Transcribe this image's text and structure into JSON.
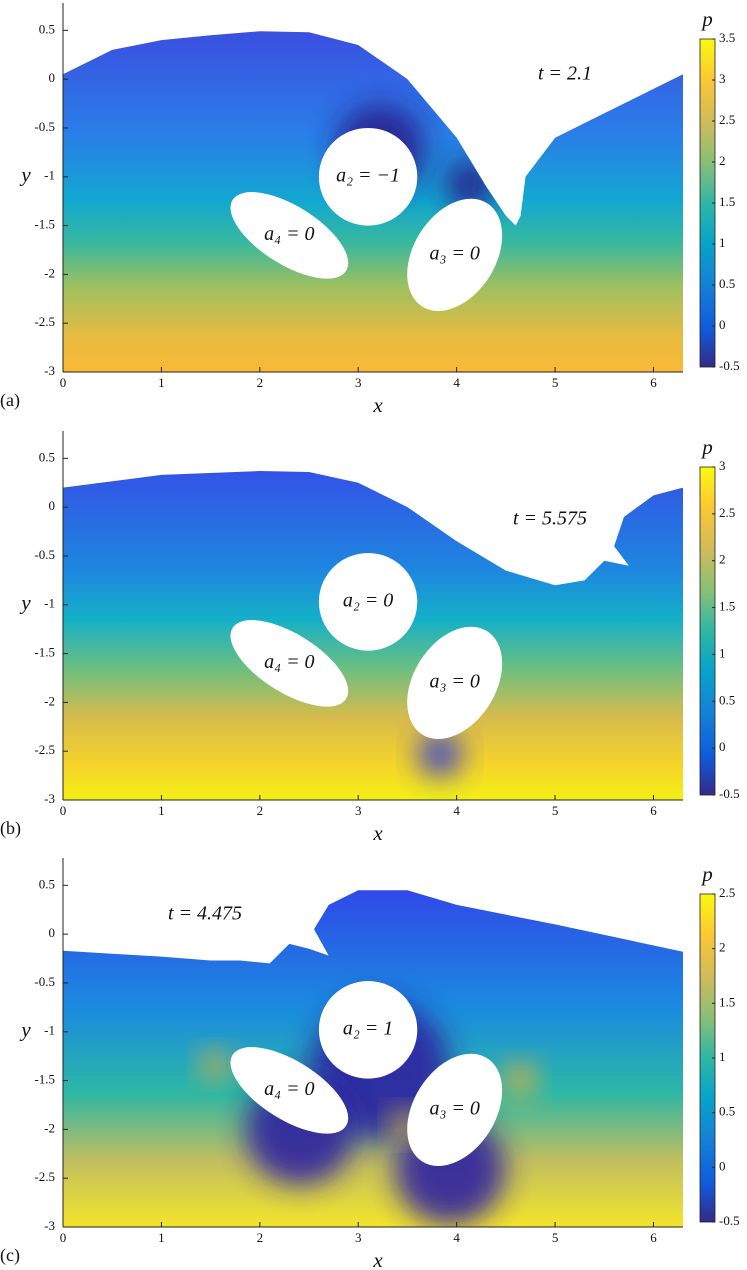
{
  "chart_data": [
    {
      "type": "field",
      "label": "(a)",
      "annotation": "t = 2.1",
      "xlabel": "x",
      "ylabel": "y",
      "colorbar_label": "p",
      "xlim": [
        0,
        6.3
      ],
      "ylim": [
        -3,
        0.78
      ],
      "xticks": [
        0,
        1,
        2,
        3,
        4,
        5,
        6
      ],
      "yticks": [
        -3,
        -2.5,
        -2,
        -1.5,
        -1,
        -0.5,
        0,
        0.5
      ],
      "clim": [
        -0.5,
        3.5
      ],
      "cticks": [
        -0.5,
        0,
        0.5,
        1,
        1.5,
        2,
        2.5,
        3,
        3.5
      ],
      "surface": {
        "x": [
          0,
          0.5,
          1,
          1.5,
          2,
          2.5,
          3,
          3.5,
          4,
          4.3,
          4.5,
          4.6,
          4.65,
          4.7,
          5,
          5.5,
          6,
          6.3
        ],
        "y": [
          0.05,
          0.3,
          0.4,
          0.45,
          0.49,
          0.48,
          0.35,
          0,
          -0.6,
          -1.1,
          -1.4,
          -1.5,
          -1.4,
          -1.0,
          -0.6,
          -0.35,
          -0.1,
          0.05
        ]
      },
      "bodies": [
        {
          "label": "a₂ = −1",
          "x": 3.1,
          "y": -1.0,
          "rx": 0.5,
          "ry": 0.5,
          "angle": 0
        },
        {
          "label": "a₄ = 0",
          "x": 2.3,
          "y": -1.6,
          "rx": 0.68,
          "ry": 0.3,
          "angle": 32
        },
        {
          "label": "a₃ = 0",
          "x": 3.98,
          "y": -1.8,
          "rx": 0.62,
          "ry": 0.42,
          "angle": -58
        }
      ]
    },
    {
      "type": "field",
      "label": "(b)",
      "annotation": "t = 5.575",
      "xlabel": "x",
      "ylabel": "y",
      "colorbar_label": "p",
      "xlim": [
        0,
        6.3
      ],
      "ylim": [
        -3,
        0.78
      ],
      "xticks": [
        0,
        1,
        2,
        3,
        4,
        5,
        6
      ],
      "yticks": [
        -3,
        -2.5,
        -2,
        -1.5,
        -1,
        -0.5,
        0,
        0.5
      ],
      "clim": [
        -0.5,
        3
      ],
      "cticks": [
        -0.5,
        0,
        0.5,
        1,
        1.5,
        2,
        2.5,
        3
      ],
      "surface": {
        "x": [
          0,
          1,
          2,
          2.5,
          3,
          3.5,
          4,
          4.5,
          5,
          5.3,
          5.5,
          5.75,
          5.6,
          5.7,
          6,
          6.3
        ],
        "y": [
          0.2,
          0.33,
          0.37,
          0.36,
          0.25,
          0,
          -0.35,
          -0.65,
          -0.8,
          -0.75,
          -0.55,
          -0.6,
          -0.4,
          -0.1,
          0.12,
          0.2
        ]
      },
      "bodies": [
        {
          "label": "a₂ = 0",
          "x": 3.1,
          "y": -0.97,
          "rx": 0.5,
          "ry": 0.5,
          "angle": 0
        },
        {
          "label": "a₄ = 0",
          "x": 2.3,
          "y": -1.6,
          "rx": 0.68,
          "ry": 0.3,
          "angle": 32
        },
        {
          "label": "a₃ = 0",
          "x": 3.98,
          "y": -1.8,
          "rx": 0.62,
          "ry": 0.42,
          "angle": -58
        }
      ]
    },
    {
      "type": "field",
      "label": "(c)",
      "annotation": "t = 4.475",
      "xlabel": "x",
      "ylabel": "y",
      "colorbar_label": "p",
      "xlim": [
        0,
        6.3
      ],
      "ylim": [
        -3,
        0.78
      ],
      "xticks": [
        0,
        1,
        2,
        3,
        4,
        5,
        6
      ],
      "yticks": [
        -3,
        -2.5,
        -2,
        -1.5,
        -1,
        -0.5,
        0,
        0.5
      ],
      "clim": [
        -0.5,
        2.5
      ],
      "cticks": [
        -0.5,
        0,
        0.5,
        1,
        1.5,
        2,
        2.5
      ],
      "surface": {
        "x": [
          0,
          0.5,
          1,
          1.5,
          1.8,
          2.1,
          2.3,
          2.5,
          2.7,
          2.55,
          2.7,
          3,
          3.5,
          4,
          5,
          6.3
        ],
        "y": [
          -0.17,
          -0.2,
          -0.23,
          -0.27,
          -0.27,
          -0.3,
          -0.1,
          -0.15,
          -0.22,
          0.05,
          0.3,
          0.45,
          0.45,
          0.3,
          0.1,
          -0.18
        ]
      },
      "bodies": [
        {
          "label": "a₂ = 1",
          "x": 3.1,
          "y": -0.98,
          "rx": 0.5,
          "ry": 0.5,
          "angle": 0
        },
        {
          "label": "a₄ = 0",
          "x": 2.3,
          "y": -1.6,
          "rx": 0.68,
          "ry": 0.3,
          "angle": 32
        },
        {
          "label": "a₃ = 0",
          "x": 3.98,
          "y": -1.8,
          "rx": 0.62,
          "ry": 0.42,
          "angle": -58
        }
      ]
    }
  ]
}
